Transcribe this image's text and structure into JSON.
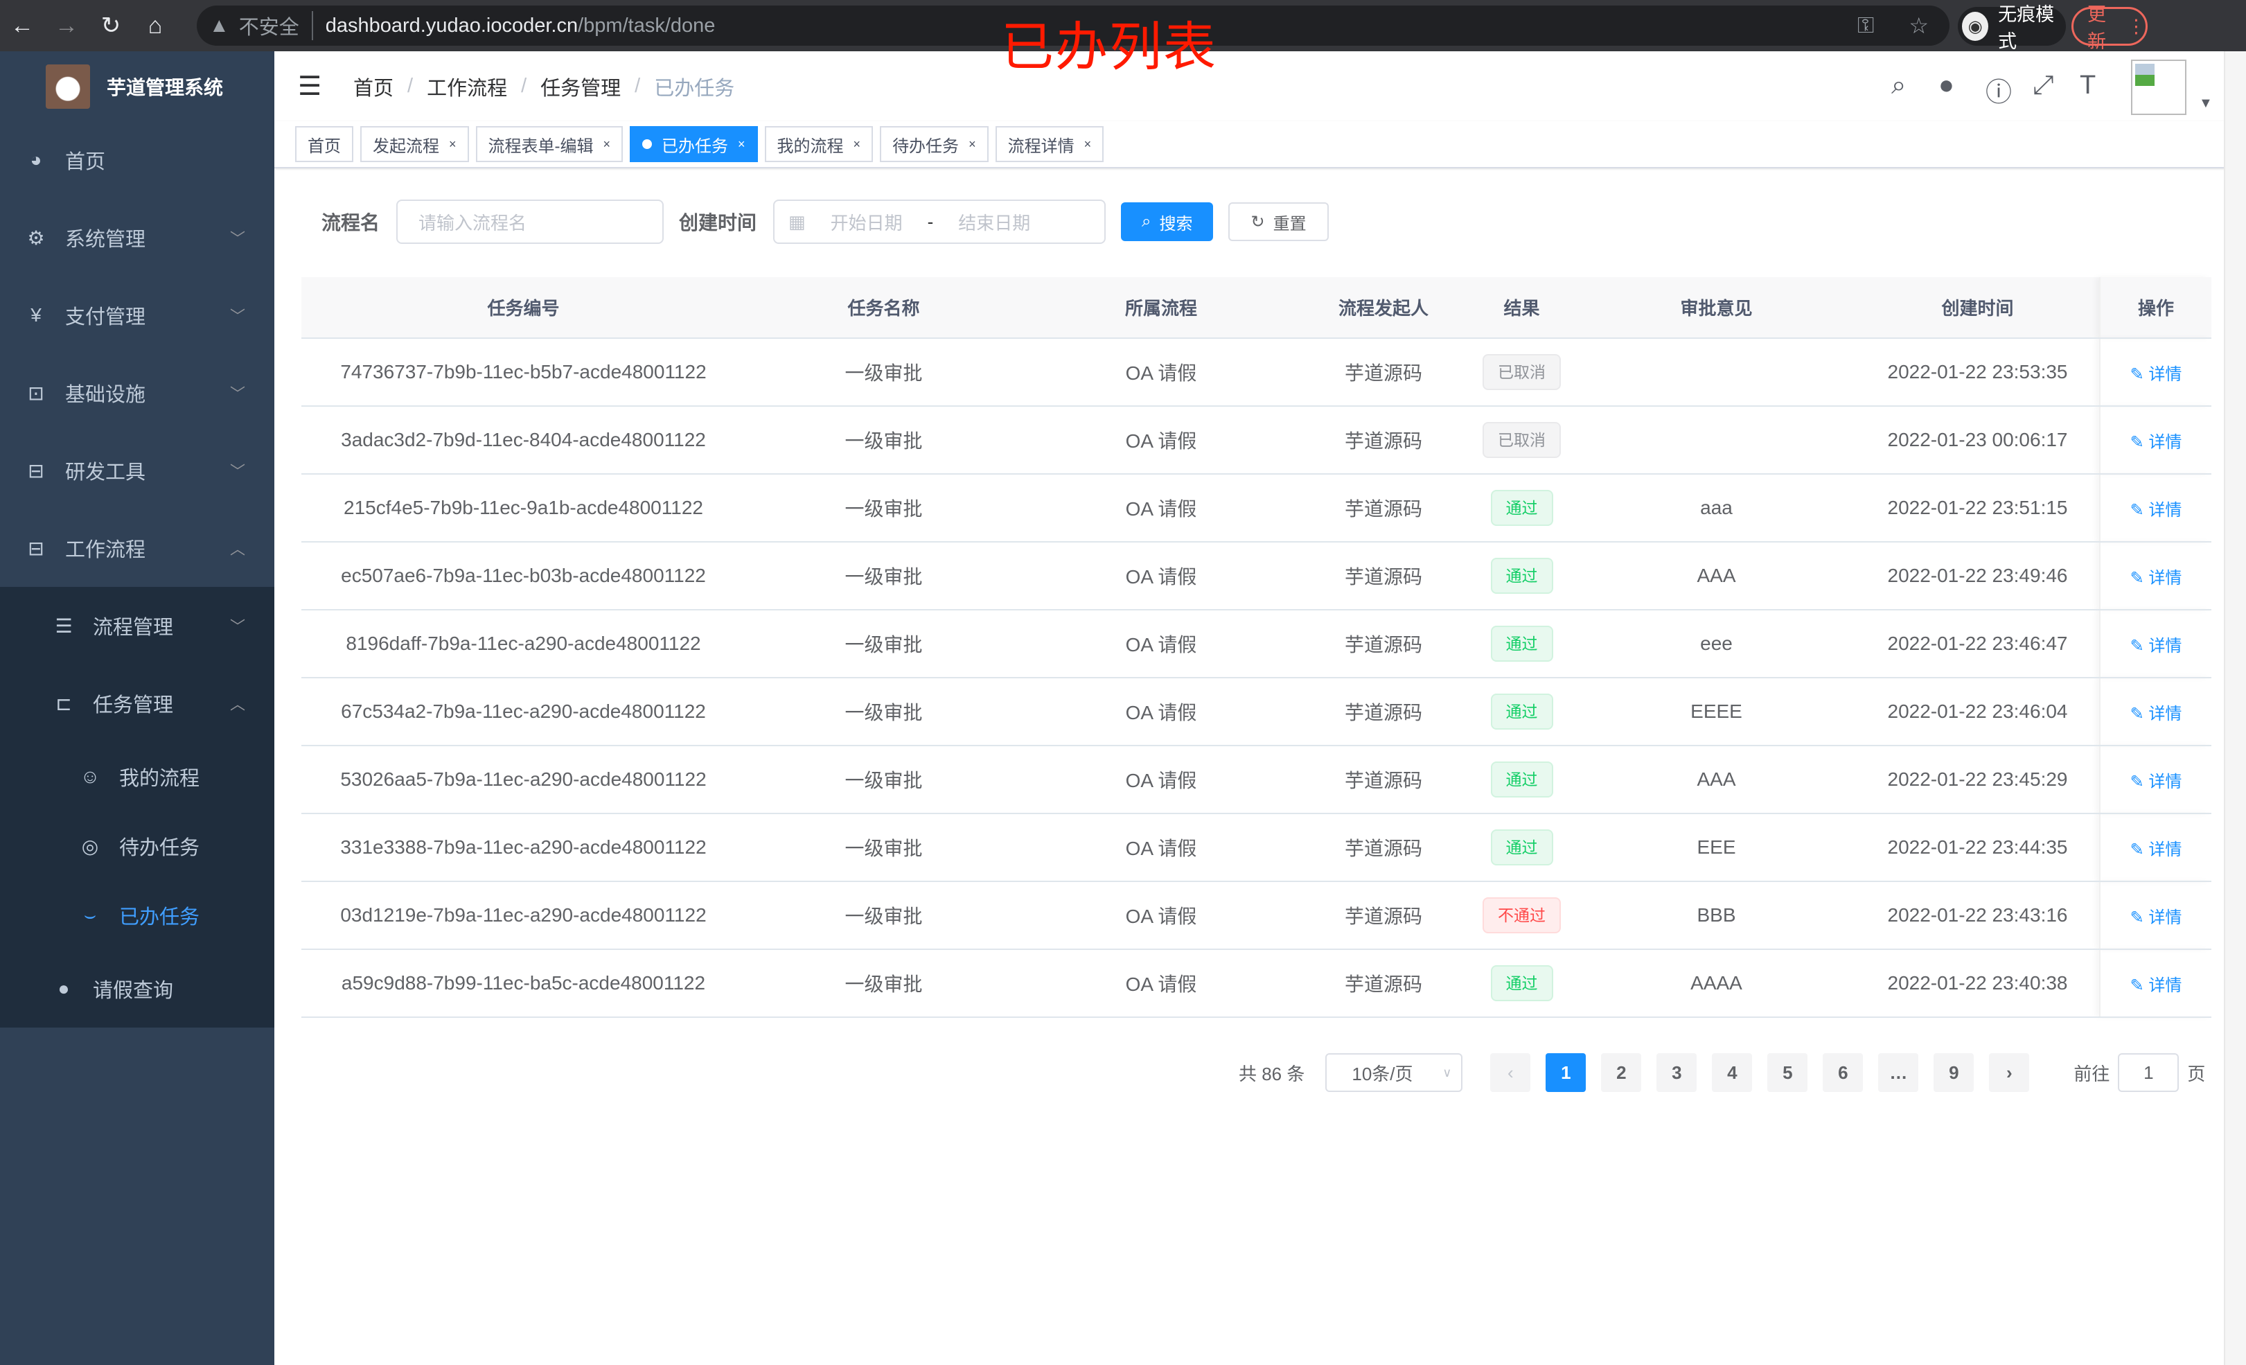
{
  "browser": {
    "insecure": "不安全",
    "url_host": "dashboard.yudao.iocoder.cn",
    "url_path": "/bpm/task/done",
    "incognito": "无痕模式",
    "update": "更新"
  },
  "annotation": "已办列表",
  "app": {
    "title": "芋道管理系统"
  },
  "sidebar": {
    "items": [
      {
        "label": "首页",
        "icon": "dashboard-icon"
      },
      {
        "label": "系统管理",
        "icon": "gear-icon"
      },
      {
        "label": "支付管理",
        "icon": "yen-icon"
      },
      {
        "label": "基础设施",
        "icon": "monitor-icon"
      },
      {
        "label": "研发工具",
        "icon": "toolbox-icon"
      },
      {
        "label": "工作流程",
        "icon": "toolbox-icon"
      }
    ],
    "sub": [
      {
        "label": "流程管理"
      },
      {
        "label": "任务管理"
      }
    ],
    "sub2": [
      {
        "label": "我的流程"
      },
      {
        "label": "待办任务"
      },
      {
        "label": "已办任务"
      }
    ],
    "leave": "请假查询"
  },
  "breadcrumb": [
    "首页",
    "工作流程",
    "任务管理",
    "已办任务"
  ],
  "tabs": [
    "首页",
    "发起流程",
    "流程表单-编辑",
    "已办任务",
    "我的流程",
    "待办任务",
    "流程详情"
  ],
  "filter": {
    "name_label": "流程名",
    "name_placeholder": "请输入流程名",
    "time_label": "创建时间",
    "start": "开始日期",
    "sep": "-",
    "end": "结束日期",
    "search": "搜索",
    "reset": "重置"
  },
  "table": {
    "columns": [
      "任务编号",
      "任务名称",
      "所属流程",
      "流程发起人",
      "结果",
      "审批意见",
      "创建时间",
      "操作"
    ],
    "detail": "详情",
    "rows": [
      {
        "id": "74736737-7b9b-11ec-b5b7-acde48001122",
        "name": "一级审批",
        "process": "OA 请假",
        "starter": "芋道源码",
        "result": "已取消",
        "status": "cancel",
        "comment": "",
        "time": "2022-01-22 23:53:35"
      },
      {
        "id": "3adac3d2-7b9d-11ec-8404-acde48001122",
        "name": "一级审批",
        "process": "OA 请假",
        "starter": "芋道源码",
        "result": "已取消",
        "status": "cancel",
        "comment": "",
        "time": "2022-01-23 00:06:17"
      },
      {
        "id": "215cf4e5-7b9b-11ec-9a1b-acde48001122",
        "name": "一级审批",
        "process": "OA 请假",
        "starter": "芋道源码",
        "result": "通过",
        "status": "pass",
        "comment": "aaa",
        "time": "2022-01-22 23:51:15"
      },
      {
        "id": "ec507ae6-7b9a-11ec-b03b-acde48001122",
        "name": "一级审批",
        "process": "OA 请假",
        "starter": "芋道源码",
        "result": "通过",
        "status": "pass",
        "comment": "AAA",
        "time": "2022-01-22 23:49:46"
      },
      {
        "id": "8196daff-7b9a-11ec-a290-acde48001122",
        "name": "一级审批",
        "process": "OA 请假",
        "starter": "芋道源码",
        "result": "通过",
        "status": "pass",
        "comment": "eee",
        "time": "2022-01-22 23:46:47"
      },
      {
        "id": "67c534a2-7b9a-11ec-a290-acde48001122",
        "name": "一级审批",
        "process": "OA 请假",
        "starter": "芋道源码",
        "result": "通过",
        "status": "pass",
        "comment": "EEEE",
        "time": "2022-01-22 23:46:04"
      },
      {
        "id": "53026aa5-7b9a-11ec-a290-acde48001122",
        "name": "一级审批",
        "process": "OA 请假",
        "starter": "芋道源码",
        "result": "通过",
        "status": "pass",
        "comment": "AAA",
        "time": "2022-01-22 23:45:29"
      },
      {
        "id": "331e3388-7b9a-11ec-a290-acde48001122",
        "name": "一级审批",
        "process": "OA 请假",
        "starter": "芋道源码",
        "result": "通过",
        "status": "pass",
        "comment": "EEE",
        "time": "2022-01-22 23:44:35"
      },
      {
        "id": "03d1219e-7b9a-11ec-a290-acde48001122",
        "name": "一级审批",
        "process": "OA 请假",
        "starter": "芋道源码",
        "result": "不通过",
        "status": "fail",
        "comment": "BBB",
        "time": "2022-01-22 23:43:16"
      },
      {
        "id": "a59c9d88-7b99-11ec-ba5c-acde48001122",
        "name": "一级审批",
        "process": "OA 请假",
        "starter": "芋道源码",
        "result": "通过",
        "status": "pass",
        "comment": "AAAA",
        "time": "2022-01-22 23:40:38"
      }
    ]
  },
  "pagination": {
    "total": "共 86 条",
    "page_size": "10条/页",
    "pages": [
      "1",
      "2",
      "3",
      "4",
      "5",
      "6",
      "…",
      "9"
    ],
    "current": "1",
    "goto_label": "前往",
    "goto_value": "1",
    "page_suffix": "页"
  },
  "colors": {
    "sidebar": "#304156",
    "submenu": "#1f2d3d",
    "primary": "#1890ff",
    "active_menu": "#409eff"
  }
}
